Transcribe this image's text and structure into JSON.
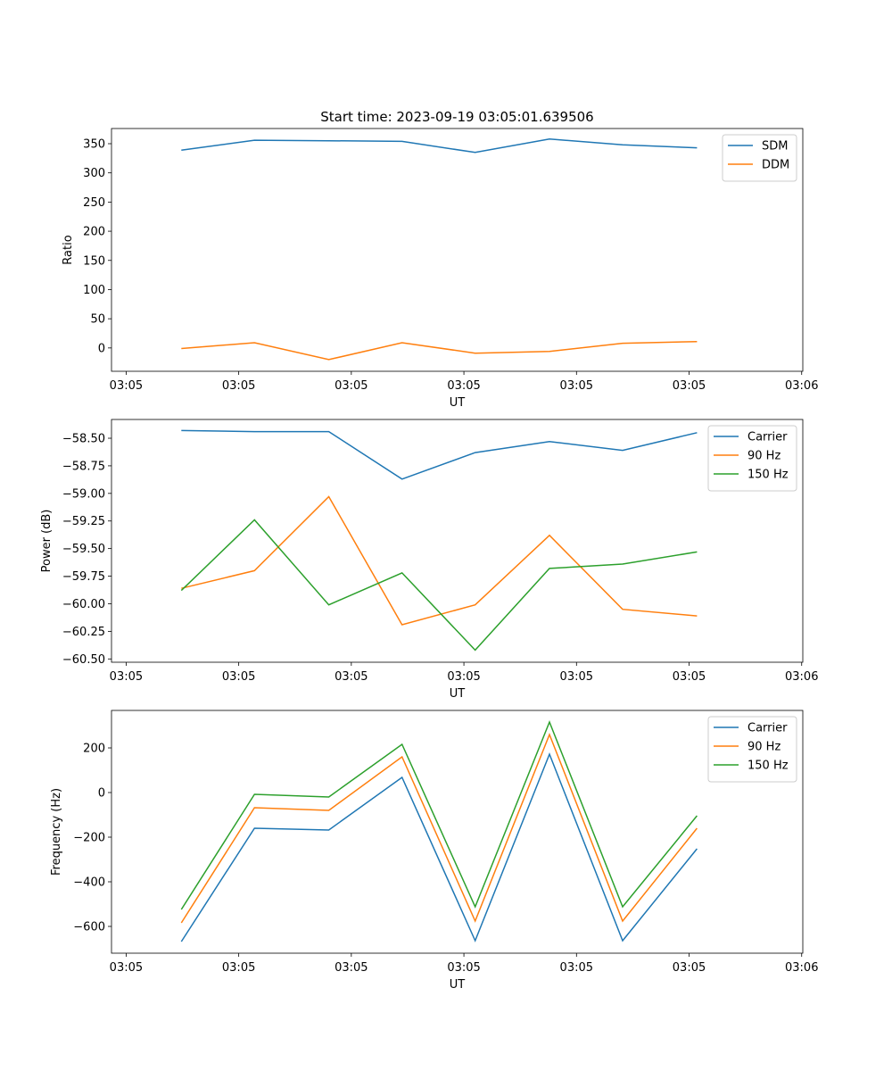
{
  "colors": {
    "c0": "#1f77b4",
    "c1": "#ff7f0e",
    "c2": "#2ca02c"
  },
  "chart_data": [
    {
      "type": "line",
      "title": "Start time: 2023-09-19 03:05:01.639506",
      "xlabel": "UT",
      "ylabel": "Ratio",
      "x": [
        4.9,
        11.4,
        18.0,
        24.5,
        31.0,
        37.6,
        44.1,
        50.7
      ],
      "xlim": [
        -1.3,
        60.1
      ],
      "xticks": [
        0,
        10,
        20,
        30,
        40,
        50,
        60
      ],
      "xtick_labels": [
        "03:05",
        "03:05",
        "03:05",
        "03:05",
        "03:05",
        "03:05",
        "03:06"
      ],
      "ylim": [
        -40,
        376
      ],
      "yticks": [
        0,
        50,
        100,
        150,
        200,
        250,
        300,
        350
      ],
      "ytick_labels": [
        "0",
        "50",
        "100",
        "150",
        "200",
        "250",
        "300",
        "350"
      ],
      "legend": "top-right",
      "series": [
        {
          "name": "SDM",
          "color": "#1f77b4",
          "values": [
            339,
            356,
            355,
            354,
            335,
            358,
            348,
            343
          ]
        },
        {
          "name": "DDM",
          "color": "#ff7f0e",
          "values": [
            -1,
            9,
            -20,
            9,
            -9,
            -6,
            8,
            11
          ]
        }
      ]
    },
    {
      "type": "line",
      "title": "",
      "xlabel": "UT",
      "ylabel": "Power (dB)",
      "x": [
        4.9,
        11.4,
        18.0,
        24.5,
        31.0,
        37.6,
        44.1,
        50.7
      ],
      "xlim": [
        -1.3,
        60.1
      ],
      "xticks": [
        0,
        10,
        20,
        30,
        40,
        50,
        60
      ],
      "xtick_labels": [
        "03:05",
        "03:05",
        "03:05",
        "03:05",
        "03:05",
        "03:05",
        "03:06"
      ],
      "ylim": [
        -60.53,
        -58.33
      ],
      "yticks": [
        -58.5,
        -58.75,
        -59.0,
        -59.25,
        -59.5,
        -59.75,
        -60.0,
        -60.25,
        -60.5
      ],
      "ytick_labels": [
        "−58.50",
        "−58.75",
        "−59.00",
        "−59.25",
        "−59.50",
        "−59.75",
        "−60.00",
        "−60.25",
        "−60.50"
      ],
      "legend": "top-right",
      "series": [
        {
          "name": "Carrier",
          "color": "#1f77b4",
          "values": [
            -58.43,
            -58.44,
            -58.44,
            -58.87,
            -58.63,
            -58.53,
            -58.61,
            -58.45
          ]
        },
        {
          "name": "90 Hz",
          "color": "#ff7f0e",
          "values": [
            -59.86,
            -59.7,
            -59.03,
            -60.19,
            -60.01,
            -59.38,
            -60.05,
            -60.11
          ]
        },
        {
          "name": "150 Hz",
          "color": "#2ca02c",
          "values": [
            -59.88,
            -59.24,
            -60.01,
            -59.72,
            -60.42,
            -59.68,
            -59.64,
            -59.53
          ]
        }
      ]
    },
    {
      "type": "line",
      "title": "",
      "xlabel": "UT",
      "ylabel": "Frequency (Hz)",
      "x": [
        4.9,
        11.4,
        18.0,
        24.5,
        31.0,
        37.6,
        44.1,
        50.7
      ],
      "xlim": [
        -1.3,
        60.1
      ],
      "xticks": [
        0,
        10,
        20,
        30,
        40,
        50,
        60
      ],
      "xtick_labels": [
        "03:05",
        "03:05",
        "03:05",
        "03:05",
        "03:05",
        "03:05",
        "03:06"
      ],
      "ylim": [
        -720,
        368
      ],
      "yticks": [
        -600,
        -400,
        -200,
        0,
        200
      ],
      "ytick_labels": [
        "−600",
        "−400",
        "−200",
        "0",
        "200"
      ],
      "legend": "top-right",
      "series": [
        {
          "name": "Carrier",
          "color": "#1f77b4",
          "values": [
            -668,
            -160,
            -168,
            68,
            -664,
            172,
            -664,
            -252
          ]
        },
        {
          "name": "90 Hz",
          "color": "#ff7f0e",
          "values": [
            -584,
            -68,
            -80,
            160,
            -576,
            260,
            -576,
            -160
          ]
        },
        {
          "name": "150 Hz",
          "color": "#2ca02c",
          "values": [
            -524,
            -8,
            -20,
            216,
            -512,
            316,
            -512,
            -104
          ]
        }
      ]
    }
  ]
}
